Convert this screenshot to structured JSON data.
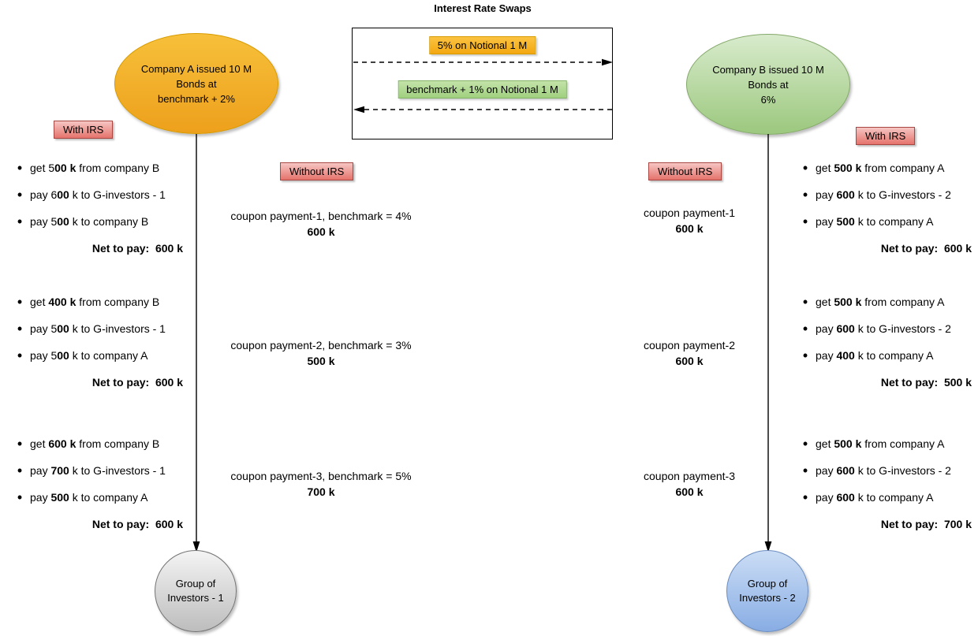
{
  "title": "Interest Rate Swaps",
  "swap_box": {
    "pay_leg": {
      "label": "5% on Notional 1 M",
      "fill": "#F6B517",
      "border": "#D79B00",
      "direction": "right"
    },
    "receive_leg": {
      "label": "benchmark + 1% on Notional 1 M",
      "fill": "#ACD88E",
      "border": "#82B366",
      "direction": "left"
    }
  },
  "company_a": {
    "lines": [
      "Company A issued 10 M",
      "Bonds at",
      "benchmark + 2%"
    ]
  },
  "company_b": {
    "lines": [
      "Company B issued 10 M",
      "Bonds at",
      "6%"
    ]
  },
  "tags": {
    "with_irs_left": "With IRS",
    "with_irs_right": "With IRS",
    "without_irs_left": "Without IRS",
    "without_irs_right": "Without IRS"
  },
  "left_with_irs": {
    "groups": [
      {
        "bullets": [
          [
            {
              "t": "get 5"
            },
            {
              "t": "00 k",
              "b": true
            },
            {
              "t": " from company B"
            }
          ],
          [
            {
              "t": "pay 6"
            },
            {
              "t": "00",
              "b": true
            },
            {
              "t": " k to G-investors - 1"
            }
          ],
          [
            {
              "t": "pay 5"
            },
            {
              "t": "00",
              "b": true
            },
            {
              "t": " k to company B"
            }
          ]
        ],
        "net": "Net to pay:  600 k"
      },
      {
        "bullets": [
          [
            {
              "t": "get "
            },
            {
              "t": "400 k",
              "b": true
            },
            {
              "t": " from company B"
            }
          ],
          [
            {
              "t": "pay 5"
            },
            {
              "t": "00",
              "b": true
            },
            {
              "t": " k to G-investors - 1"
            }
          ],
          [
            {
              "t": "pay 5"
            },
            {
              "t": "00",
              "b": true
            },
            {
              "t": " k to company A"
            }
          ]
        ],
        "net": "Net to pay:  600 k"
      },
      {
        "bullets": [
          [
            {
              "t": "get "
            },
            {
              "t": "600 k",
              "b": true
            },
            {
              "t": " from company B"
            }
          ],
          [
            {
              "t": "pay "
            },
            {
              "t": "700",
              "b": true
            },
            {
              "t": " k to G-investors - 1"
            }
          ],
          [
            {
              "t": "pay "
            },
            {
              "t": "500",
              "b": true
            },
            {
              "t": " k to company A"
            }
          ]
        ],
        "net": "Net to pay:  600 k"
      }
    ]
  },
  "right_with_irs": {
    "groups": [
      {
        "bullets": [
          [
            {
              "t": "get "
            },
            {
              "t": "500 k",
              "b": true
            },
            {
              "t": " from company A"
            }
          ],
          [
            {
              "t": "pay "
            },
            {
              "t": "600",
              "b": true
            },
            {
              "t": " k to G-investors - 2"
            }
          ],
          [
            {
              "t": "pay "
            },
            {
              "t": "500",
              "b": true
            },
            {
              "t": " k to company A"
            }
          ]
        ],
        "net": "Net to pay:  600 k"
      },
      {
        "bullets": [
          [
            {
              "t": "get "
            },
            {
              "t": "500 k",
              "b": true
            },
            {
              "t": " from company A"
            }
          ],
          [
            {
              "t": "pay "
            },
            {
              "t": "600",
              "b": true
            },
            {
              "t": " k to G-investors - 2"
            }
          ],
          [
            {
              "t": "pay "
            },
            {
              "t": "400",
              "b": true
            },
            {
              "t": " k to company A"
            }
          ]
        ],
        "net": "Net to pay:  500 k"
      },
      {
        "bullets": [
          [
            {
              "t": "get "
            },
            {
              "t": "500 k",
              "b": true
            },
            {
              "t": " from company A"
            }
          ],
          [
            {
              "t": "pay "
            },
            {
              "t": "600",
              "b": true
            },
            {
              "t": " k to G-investors - 2"
            }
          ],
          [
            {
              "t": "pay "
            },
            {
              "t": "600",
              "b": true
            },
            {
              "t": " k to company A"
            }
          ]
        ],
        "net": "Net to pay:  700 k"
      }
    ]
  },
  "left_without_irs": {
    "payments": [
      {
        "label": "coupon payment-1, benchmark = 4%",
        "amount": "600 k"
      },
      {
        "label": "coupon payment-2, benchmark = 3%",
        "amount": "500 k"
      },
      {
        "label": "coupon payment-3, benchmark = 5%",
        "amount": "700 k"
      }
    ]
  },
  "right_without_irs": {
    "payments": [
      {
        "label": "coupon payment-1",
        "amount": "600 k"
      },
      {
        "label": "coupon payment-2",
        "amount": "600 k"
      },
      {
        "label": "coupon payment-3",
        "amount": "600 k"
      }
    ]
  },
  "investors_1": {
    "lines": [
      "Group of",
      "Investors - 1"
    ]
  },
  "investors_2": {
    "lines": [
      "Group of",
      "Investors - 2"
    ]
  },
  "colors": {
    "company_a_fill_top": "#F7C03A",
    "company_a_fill_bottom": "#EDA01C",
    "company_a_border": "#D79B00",
    "company_b_fill_top": "#D8EBCC",
    "company_b_fill_bottom": "#9CC87E",
    "company_b_border": "#84A96B",
    "irs_tag_fill_top": "#F6C6C3",
    "irs_tag_fill_bottom": "#E5736C",
    "irs_tag_border": "#A84742",
    "investors_1_fill_top": "#F4F4F4",
    "investors_1_fill_bottom": "#BDBDBD",
    "investors_2_fill_top": "#CBDDF5",
    "investors_2_fill_bottom": "#88ADE4",
    "investors_2_border": "#6C8EBF",
    "arrow_color": "#000000"
  }
}
